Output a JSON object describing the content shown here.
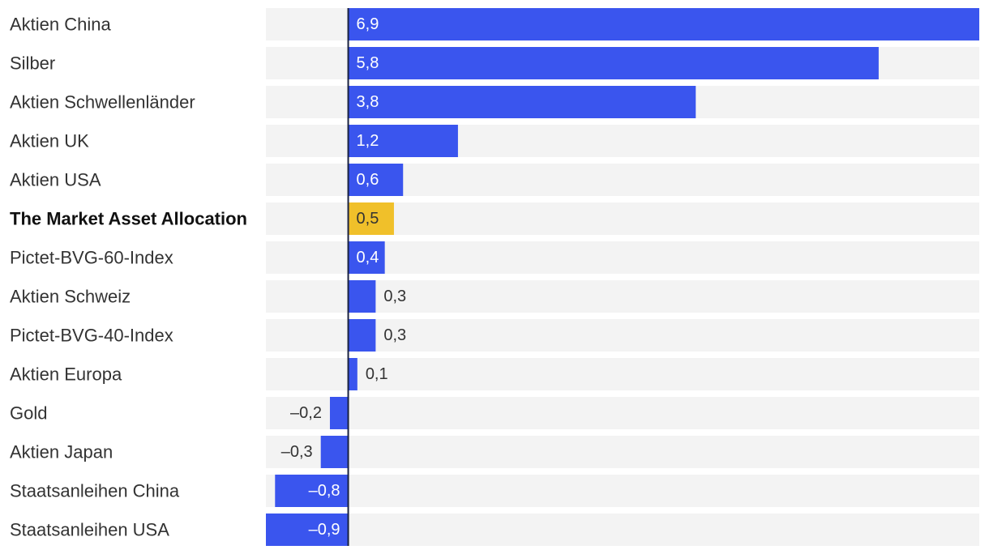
{
  "chart_data": {
    "type": "bar",
    "orientation": "horizontal",
    "title": "",
    "xlabel": "",
    "ylabel": "",
    "xlim": [
      -0.9,
      6.9
    ],
    "categories": [
      "Aktien China",
      "Silber",
      "Aktien Schwellenländer",
      "Aktien UK",
      "Aktien USA",
      "The Market Asset Allocation",
      "Pictet-BVG-60-Index",
      "Aktien Schweiz",
      "Pictet-BVG-40-Index",
      "Aktien Europa",
      "Gold",
      "Aktien Japan",
      "Staatsanleihen China",
      "Staatsanleihen USA"
    ],
    "values": [
      6.9,
      5.8,
      3.8,
      1.2,
      0.6,
      0.5,
      0.4,
      0.3,
      0.3,
      0.1,
      -0.2,
      -0.3,
      -0.8,
      -0.9
    ],
    "value_labels": [
      "6,9",
      "5,8",
      "3,8",
      "1,2",
      "0,6",
      "0,5",
      "0,4",
      "0,3",
      "0,3",
      "0,1",
      "–0,2",
      "–0,3",
      "–0,8",
      "–0,9"
    ],
    "highlight_category": "The Market Asset Allocation",
    "colors": {
      "bar": "#3a55ee",
      "highlight": "#f0c02a",
      "track": "#f3f3f3",
      "zero_line": "#1a2240",
      "label_inside": "#ffffff",
      "label_outside": "#333333",
      "label_highlight": "#333333"
    }
  }
}
